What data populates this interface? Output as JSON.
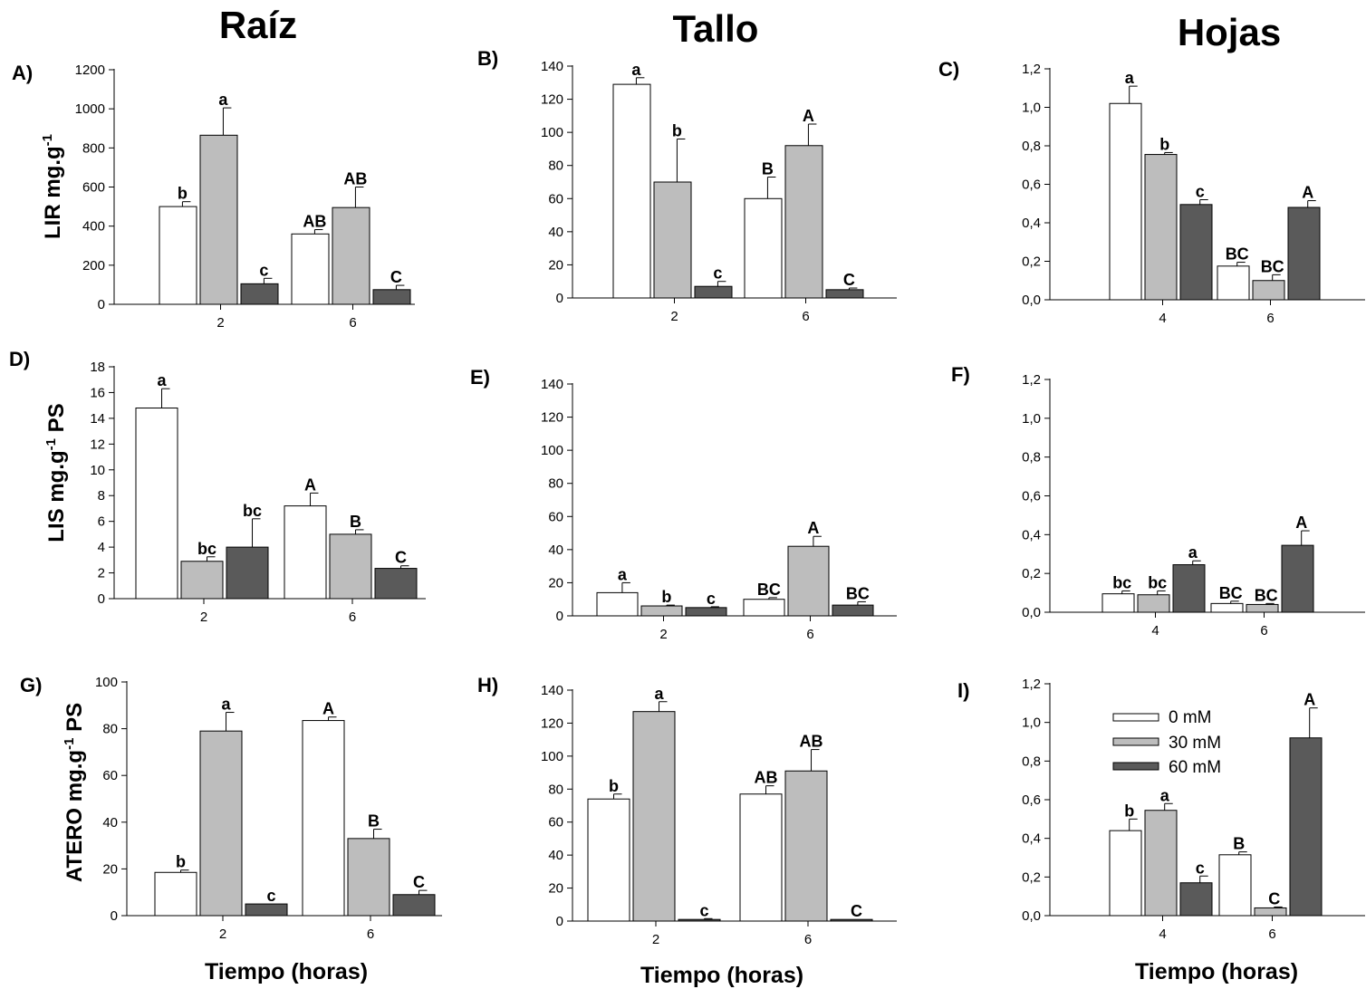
{
  "colors": {
    "s0": "#ffffff",
    "s30": "#bdbdbd",
    "s60": "#5a5a5a",
    "axis": "#000000"
  },
  "column_titles": [
    "Raíz",
    "Tallo",
    "Hojas"
  ],
  "xlabel": "Tiempo (horas)",
  "ylabels": {
    "row0": "LIR mg.g-1",
    "row1": "LIS mg.g-1 PS",
    "row2": "ATERO mg.g-1 PS"
  },
  "legend": [
    "0 mM",
    "30 mM",
    "60 mM"
  ],
  "chart_data": [
    {
      "panel": "A)",
      "type": "bar",
      "categories": [
        "2",
        "6"
      ],
      "ylim": [
        0,
        1200
      ],
      "yticks": [
        "0",
        "200",
        "400",
        "600",
        "800",
        "1000",
        "1200"
      ],
      "series": [
        {
          "name": "0 mM",
          "values": [
            500,
            360
          ],
          "errors": [
            25,
            22
          ]
        },
        {
          "name": "30 mM",
          "values": [
            865,
            495
          ],
          "errors": [
            140,
            105
          ]
        },
        {
          "name": "60 mM",
          "values": [
            105,
            75
          ],
          "errors": [
            28,
            22
          ]
        }
      ],
      "labels": [
        [
          "b",
          "AB"
        ],
        [
          "a",
          "AB"
        ],
        [
          "c",
          "C"
        ]
      ]
    },
    {
      "panel": "B)",
      "type": "bar",
      "categories": [
        "2",
        "6"
      ],
      "ylim": [
        0,
        140
      ],
      "yticks": [
        "0",
        "20",
        "40",
        "60",
        "80",
        "100",
        "120",
        "140"
      ],
      "series": [
        {
          "name": "0 mM",
          "values": [
            129,
            60
          ],
          "errors": [
            4,
            13
          ]
        },
        {
          "name": "30 mM",
          "values": [
            70,
            92
          ],
          "errors": [
            26,
            13
          ]
        },
        {
          "name": "60 mM",
          "values": [
            7,
            5
          ],
          "errors": [
            3,
            1
          ]
        }
      ],
      "labels": [
        [
          "a",
          "B"
        ],
        [
          "b",
          "A"
        ],
        [
          "c",
          "C"
        ]
      ]
    },
    {
      "panel": "C)",
      "type": "bar",
      "categories": [
        "4",
        "6"
      ],
      "ylim": [
        0,
        1.2
      ],
      "yticks": [
        "0,0",
        "0,2",
        "0,4",
        "0,6",
        "0,8",
        "1,0",
        "1,2"
      ],
      "series": [
        {
          "name": "0 mM",
          "values": [
            1.02,
            0.175
          ],
          "errors": [
            0.09,
            0.02
          ]
        },
        {
          "name": "30 mM",
          "values": [
            0.755,
            0.1
          ],
          "errors": [
            0.01,
            0.03
          ]
        },
        {
          "name": "60 mM",
          "values": [
            0.495,
            0.48
          ],
          "errors": [
            0.025,
            0.035
          ]
        }
      ],
      "labels": [
        [
          "a",
          "BC"
        ],
        [
          "b",
          "BC"
        ],
        [
          "c",
          "A"
        ]
      ]
    },
    {
      "panel": "D)",
      "type": "bar",
      "categories": [
        "2",
        "6"
      ],
      "ylim": [
        0,
        18
      ],
      "yticks": [
        "0",
        "2",
        "4",
        "6",
        "8",
        "10",
        "12",
        "14",
        "16",
        "18"
      ],
      "series": [
        {
          "name": "0 mM",
          "values": [
            14.8,
            7.2
          ],
          "errors": [
            1.5,
            1.0
          ]
        },
        {
          "name": "30 mM",
          "values": [
            2.9,
            5.0
          ],
          "errors": [
            0.35,
            0.35
          ]
        },
        {
          "name": "60 mM",
          "values": [
            4.0,
            2.35
          ],
          "errors": [
            2.2,
            0.2
          ]
        }
      ],
      "labels": [
        [
          "a",
          "A"
        ],
        [
          "bc",
          "B"
        ],
        [
          "bc",
          "C"
        ]
      ]
    },
    {
      "panel": "E)",
      "type": "bar",
      "categories": [
        "2",
        "6"
      ],
      "ylim": [
        0,
        140
      ],
      "yticks": [
        "0",
        "20",
        "40",
        "60",
        "80",
        "100",
        "120",
        "140"
      ],
      "series": [
        {
          "name": "0 mM",
          "values": [
            14,
            10
          ],
          "errors": [
            6,
            1
          ]
        },
        {
          "name": "30 mM",
          "values": [
            6,
            42
          ],
          "errors": [
            0.5,
            6
          ]
        },
        {
          "name": "60 mM",
          "values": [
            5,
            6.5
          ],
          "errors": [
            0.5,
            2
          ]
        }
      ],
      "labels": [
        [
          "a",
          "BC"
        ],
        [
          "b",
          "A"
        ],
        [
          "c",
          "BC"
        ]
      ]
    },
    {
      "panel": "F)",
      "type": "bar",
      "categories": [
        "4",
        "6"
      ],
      "ylim": [
        0,
        1.2
      ],
      "yticks": [
        "0,0",
        "0,2",
        "0,4",
        "0,6",
        "0,8",
        "1,0",
        "1,2"
      ],
      "series": [
        {
          "name": "0 mM",
          "values": [
            0.095,
            0.045
          ],
          "errors": [
            0.015,
            0.012
          ]
        },
        {
          "name": "30 mM",
          "values": [
            0.09,
            0.04
          ],
          "errors": [
            0.02,
            0.005
          ]
        },
        {
          "name": "60 mM",
          "values": [
            0.245,
            0.345
          ],
          "errors": [
            0.02,
            0.075
          ]
        }
      ],
      "labels": [
        [
          "bc",
          "BC"
        ],
        [
          "bc",
          "BC"
        ],
        [
          "a",
          "A"
        ]
      ]
    },
    {
      "panel": "G)",
      "type": "bar",
      "categories": [
        "2",
        "6"
      ],
      "ylim": [
        0,
        100
      ],
      "yticks": [
        "0",
        "20",
        "40",
        "60",
        "80",
        "100"
      ],
      "series": [
        {
          "name": "0 mM",
          "values": [
            18.5,
            83.5
          ],
          "errors": [
            1,
            1.5
          ]
        },
        {
          "name": "30 mM",
          "values": [
            79,
            33
          ],
          "errors": [
            8,
            4
          ]
        },
        {
          "name": "60 mM",
          "values": [
            5,
            9
          ],
          "errors": [
            0,
            1.8
          ]
        }
      ],
      "labels": [
        [
          "b",
          "A"
        ],
        [
          "a",
          "B"
        ],
        [
          "c",
          "C"
        ]
      ]
    },
    {
      "panel": "H)",
      "type": "bar",
      "categories": [
        "2",
        "6"
      ],
      "ylim": [
        0,
        140
      ],
      "yticks": [
        "0",
        "20",
        "40",
        "60",
        "80",
        "100",
        "120",
        "140"
      ],
      "series": [
        {
          "name": "0 mM",
          "values": [
            74,
            77
          ],
          "errors": [
            3,
            5
          ]
        },
        {
          "name": "30 mM",
          "values": [
            127,
            91
          ],
          "errors": [
            6,
            13
          ]
        },
        {
          "name": "60 mM",
          "values": [
            1,
            1
          ],
          "errors": [
            0.5,
            0
          ]
        }
      ],
      "labels": [
        [
          "b",
          "AB"
        ],
        [
          "a",
          "AB"
        ],
        [
          "c",
          "C"
        ]
      ]
    },
    {
      "panel": "I)",
      "type": "bar",
      "categories": [
        "4",
        "6"
      ],
      "ylim": [
        0,
        1.2
      ],
      "yticks": [
        "0,0",
        "0,2",
        "0,4",
        "0,6",
        "0,8",
        "1,0",
        "1,2"
      ],
      "series": [
        {
          "name": "0 mM",
          "values": [
            0.44,
            0.315
          ],
          "errors": [
            0.06,
            0.015
          ]
        },
        {
          "name": "30 mM",
          "values": [
            0.545,
            0.04
          ],
          "errors": [
            0.035,
            0.005
          ]
        },
        {
          "name": "60 mM",
          "values": [
            0.17,
            0.92
          ],
          "errors": [
            0.035,
            0.155
          ]
        }
      ],
      "labels": [
        [
          "b",
          "B"
        ],
        [
          "a",
          "C"
        ],
        [
          "c",
          "A"
        ]
      ]
    }
  ]
}
